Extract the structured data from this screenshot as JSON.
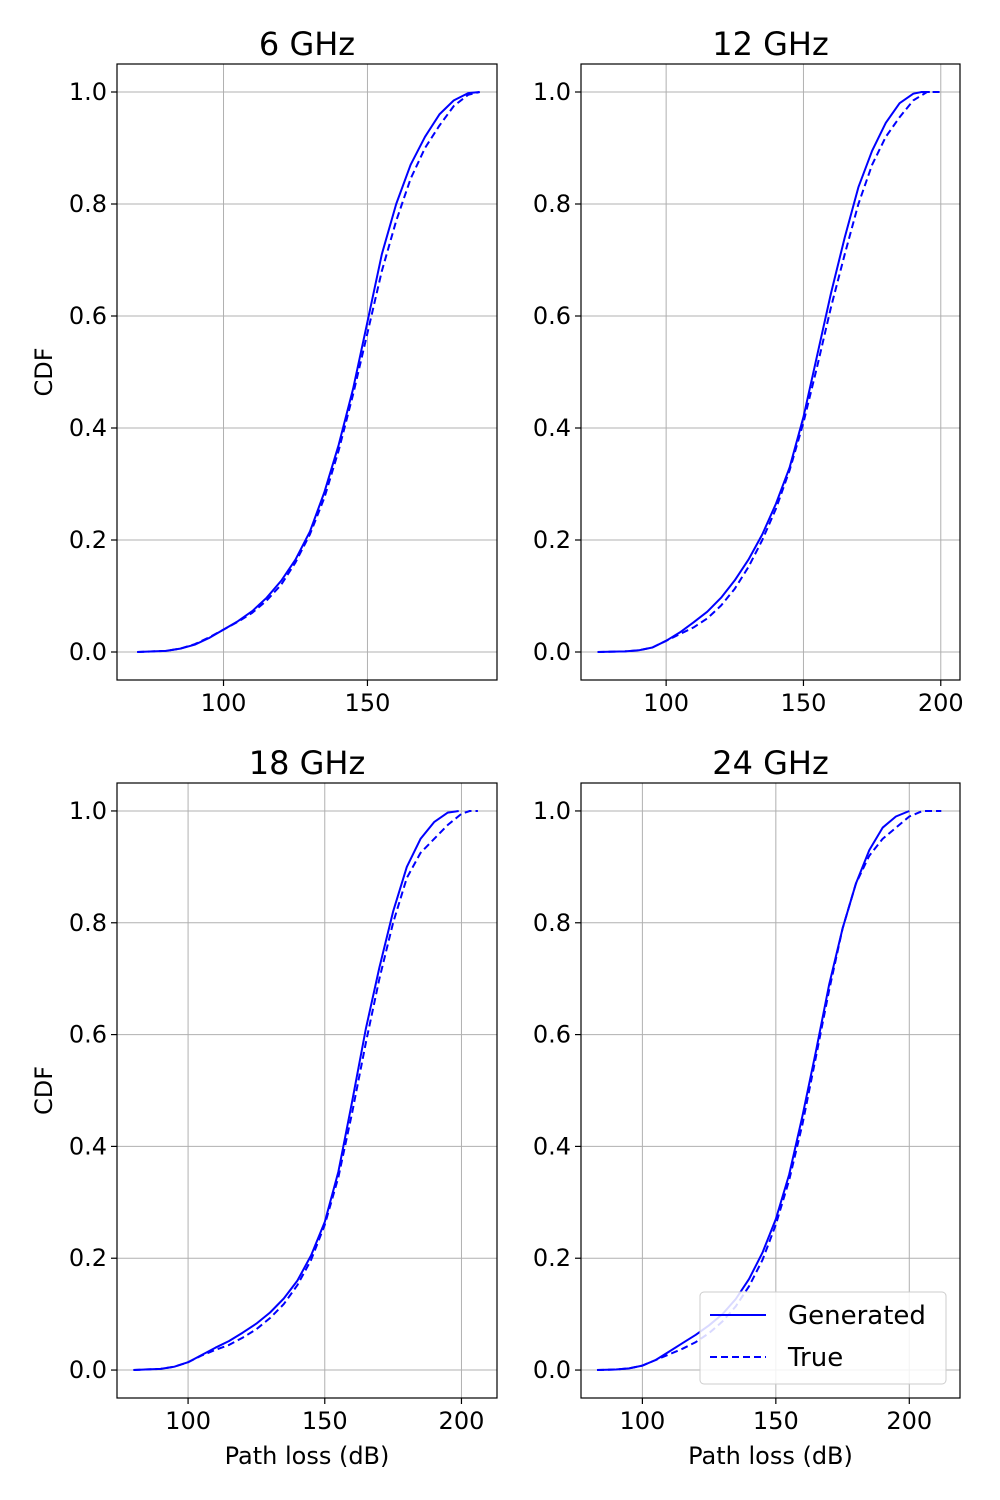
{
  "chart_data": [
    {
      "type": "line",
      "title": "6 GHz",
      "xlabel": "",
      "ylabel": "CDF",
      "xlim": [
        63,
        195
      ],
      "ylim": [
        -0.05,
        1.05
      ],
      "xticks": [
        100,
        150
      ],
      "yticks": [
        0.0,
        0.2,
        0.4,
        0.6,
        0.8,
        1.0
      ],
      "grid": true,
      "series": [
        {
          "name": "Generated",
          "color": "#0000ff",
          "style": "solid",
          "x": [
            70,
            80,
            85,
            90,
            95,
            100,
            105,
            110,
            115,
            120,
            125,
            130,
            135,
            140,
            145,
            150,
            155,
            160,
            165,
            170,
            175,
            180,
            185,
            189
          ],
          "y": [
            0.0,
            0.002,
            0.006,
            0.013,
            0.025,
            0.04,
            0.055,
            0.073,
            0.097,
            0.127,
            0.165,
            0.215,
            0.285,
            0.37,
            0.47,
            0.59,
            0.71,
            0.8,
            0.87,
            0.92,
            0.96,
            0.985,
            0.998,
            1.0
          ]
        },
        {
          "name": "True",
          "color": "#0000ff",
          "style": "dashed",
          "x": [
            70,
            80,
            85,
            90,
            95,
            100,
            105,
            110,
            115,
            120,
            125,
            130,
            135,
            140,
            145,
            150,
            155,
            160,
            165,
            170,
            175,
            180,
            185,
            189
          ],
          "y": [
            0.0,
            0.002,
            0.006,
            0.014,
            0.026,
            0.04,
            0.054,
            0.07,
            0.092,
            0.12,
            0.16,
            0.21,
            0.275,
            0.36,
            0.46,
            0.57,
            0.68,
            0.77,
            0.845,
            0.9,
            0.94,
            0.975,
            0.995,
            1.0
          ]
        }
      ]
    },
    {
      "type": "line",
      "title": "12 GHz",
      "xlabel": "",
      "ylabel": "",
      "xlim": [
        69,
        207
      ],
      "ylim": [
        -0.05,
        1.05
      ],
      "xticks": [
        100,
        150,
        200
      ],
      "yticks": [
        0.0,
        0.2,
        0.4,
        0.6,
        0.8,
        1.0
      ],
      "grid": true,
      "series": [
        {
          "name": "Generated",
          "color": "#0000ff",
          "style": "solid",
          "x": [
            75,
            85,
            90,
            95,
            100,
            105,
            110,
            115,
            120,
            125,
            130,
            135,
            140,
            145,
            150,
            155,
            160,
            165,
            170,
            175,
            180,
            185,
            190,
            193,
            196
          ],
          "y": [
            0.0,
            0.001,
            0.003,
            0.008,
            0.02,
            0.035,
            0.053,
            0.072,
            0.097,
            0.128,
            0.165,
            0.21,
            0.265,
            0.33,
            0.42,
            0.53,
            0.64,
            0.74,
            0.83,
            0.895,
            0.945,
            0.98,
            0.997,
            1.0,
            1.0
          ]
        },
        {
          "name": "True",
          "color": "#0000ff",
          "style": "dashed",
          "x": [
            75,
            85,
            90,
            95,
            100,
            105,
            110,
            115,
            120,
            125,
            130,
            135,
            140,
            145,
            150,
            155,
            160,
            165,
            170,
            175,
            180,
            185,
            190,
            195,
            200
          ],
          "y": [
            0.0,
            0.001,
            0.003,
            0.008,
            0.02,
            0.032,
            0.044,
            0.06,
            0.083,
            0.113,
            0.152,
            0.2,
            0.256,
            0.325,
            0.41,
            0.51,
            0.615,
            0.71,
            0.8,
            0.87,
            0.92,
            0.955,
            0.985,
            1.0,
            1.0
          ]
        }
      ]
    },
    {
      "type": "line",
      "title": "18 GHz",
      "xlabel": "Path loss (dB)",
      "ylabel": "CDF",
      "xlim": [
        74,
        213
      ],
      "ylim": [
        -0.05,
        1.05
      ],
      "xticks": [
        100,
        150,
        200
      ],
      "yticks": [
        0.0,
        0.2,
        0.4,
        0.6,
        0.8,
        1.0
      ],
      "grid": true,
      "series": [
        {
          "name": "Generated",
          "color": "#0000ff",
          "style": "solid",
          "x": [
            80,
            90,
            95,
            100,
            105,
            110,
            115,
            120,
            125,
            130,
            135,
            140,
            145,
            150,
            155,
            160,
            165,
            170,
            175,
            180,
            185,
            190,
            195,
            199
          ],
          "y": [
            0.0,
            0.002,
            0.006,
            0.014,
            0.027,
            0.04,
            0.052,
            0.067,
            0.083,
            0.103,
            0.128,
            0.16,
            0.205,
            0.265,
            0.355,
            0.48,
            0.61,
            0.72,
            0.82,
            0.9,
            0.95,
            0.98,
            0.997,
            1.0
          ]
        },
        {
          "name": "True",
          "color": "#0000ff",
          "style": "dashed",
          "x": [
            80,
            90,
            95,
            100,
            105,
            110,
            115,
            120,
            125,
            130,
            135,
            140,
            145,
            150,
            155,
            160,
            165,
            170,
            175,
            180,
            185,
            190,
            195,
            200,
            203,
            206
          ],
          "y": [
            0.0,
            0.002,
            0.006,
            0.014,
            0.026,
            0.036,
            0.045,
            0.058,
            0.073,
            0.093,
            0.118,
            0.152,
            0.197,
            0.26,
            0.345,
            0.46,
            0.585,
            0.7,
            0.8,
            0.88,
            0.925,
            0.95,
            0.975,
            0.995,
            1.0,
            1.0
          ]
        }
      ]
    },
    {
      "type": "line",
      "title": "24 GHz",
      "xlabel": "Path loss (dB)",
      "ylabel": "",
      "xlim": [
        77,
        219
      ],
      "ylim": [
        -0.05,
        1.05
      ],
      "xticks": [
        100,
        150,
        200
      ],
      "yticks": [
        0.0,
        0.2,
        0.4,
        0.6,
        0.8,
        1.0
      ],
      "grid": true,
      "legend": "lower-right",
      "series": [
        {
          "name": "Generated",
          "color": "#0000ff",
          "style": "solid",
          "x": [
            83,
            90,
            95,
            100,
            105,
            110,
            115,
            120,
            125,
            130,
            135,
            140,
            145,
            150,
            155,
            160,
            165,
            170,
            175,
            180,
            185,
            190,
            195,
            200
          ],
          "y": [
            0.0,
            0.001,
            0.003,
            0.008,
            0.018,
            0.033,
            0.048,
            0.063,
            0.08,
            0.1,
            0.127,
            0.163,
            0.21,
            0.27,
            0.35,
            0.455,
            0.57,
            0.69,
            0.79,
            0.87,
            0.93,
            0.97,
            0.99,
            1.0
          ]
        },
        {
          "name": "True",
          "color": "#0000ff",
          "style": "dashed",
          "x": [
            83,
            90,
            95,
            100,
            105,
            110,
            115,
            120,
            125,
            130,
            135,
            140,
            145,
            150,
            155,
            160,
            165,
            170,
            175,
            180,
            185,
            190,
            195,
            200,
            205,
            212
          ],
          "y": [
            0.0,
            0.001,
            0.003,
            0.008,
            0.018,
            0.028,
            0.038,
            0.05,
            0.066,
            0.087,
            0.114,
            0.15,
            0.197,
            0.26,
            0.34,
            0.44,
            0.56,
            0.68,
            0.79,
            0.87,
            0.92,
            0.95,
            0.97,
            0.99,
            1.0,
            1.0
          ]
        }
      ]
    }
  ]
}
